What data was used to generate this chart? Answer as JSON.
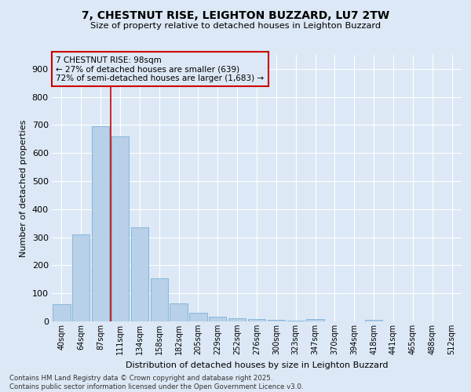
{
  "title_line1": "7, CHESTNUT RISE, LEIGHTON BUZZARD, LU7 2TW",
  "title_line2": "Size of property relative to detached houses in Leighton Buzzard",
  "xlabel": "Distribution of detached houses by size in Leighton Buzzard",
  "ylabel": "Number of detached properties",
  "categories": [
    "40sqm",
    "64sqm",
    "87sqm",
    "111sqm",
    "134sqm",
    "158sqm",
    "182sqm",
    "205sqm",
    "229sqm",
    "252sqm",
    "276sqm",
    "300sqm",
    "323sqm",
    "347sqm",
    "370sqm",
    "394sqm",
    "418sqm",
    "441sqm",
    "465sqm",
    "488sqm",
    "512sqm"
  ],
  "values": [
    62,
    310,
    695,
    660,
    335,
    153,
    65,
    30,
    18,
    12,
    8,
    5,
    3,
    8,
    0,
    0,
    5,
    0,
    0,
    0,
    0
  ],
  "bar_color": "#b8d0e8",
  "bar_edgecolor": "#6aaad4",
  "vline_x_index": 2.5,
  "vline_color": "#cc0000",
  "annotation_text": "7 CHESTNUT RISE: 98sqm\n← 27% of detached houses are smaller (639)\n72% of semi-detached houses are larger (1,683) →",
  "annotation_box_color": "#cc0000",
  "ylim": [
    0,
    950
  ],
  "yticks": [
    0,
    100,
    200,
    300,
    400,
    500,
    600,
    700,
    800,
    900
  ],
  "background_color": "#dce8f5",
  "grid_color": "#ffffff",
  "footer": "Contains HM Land Registry data © Crown copyright and database right 2025.\nContains public sector information licensed under the Open Government Licence v3.0.",
  "figsize": [
    6.0,
    5.0
  ],
  "dpi": 100
}
